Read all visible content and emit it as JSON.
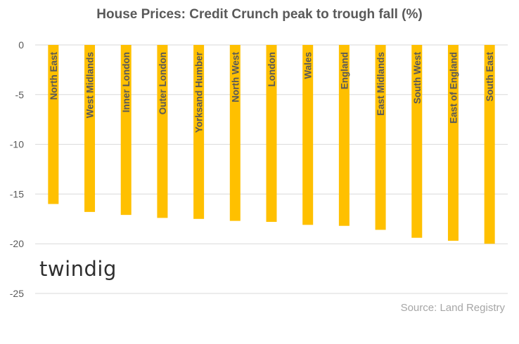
{
  "chart_data": {
    "type": "bar",
    "title": "House Prices: Credit Crunch peak to trough fall (%)",
    "categories": [
      "North East",
      "West Midlands",
      "Inner London",
      "Outer London",
      "Yorksand Humber",
      "North West",
      "London",
      "Wales",
      "England",
      "East Midlands",
      "South West",
      "East of England",
      "South East"
    ],
    "values": [
      -16.0,
      -16.8,
      -17.1,
      -17.4,
      -17.5,
      -17.7,
      -17.8,
      -18.1,
      -18.2,
      -18.6,
      -19.4,
      -19.7,
      -20.0
    ],
    "ylim": [
      -25,
      0
    ],
    "yticks": [
      0,
      -5,
      -10,
      -15,
      -20,
      -25
    ],
    "grid": true,
    "bar_color": "#FFC000",
    "grid_color": "#D9D9D9",
    "label_placement": "inside-bar-vertical"
  },
  "branding": {
    "logo_text": "twindig",
    "source": "Source: Land Registry"
  }
}
